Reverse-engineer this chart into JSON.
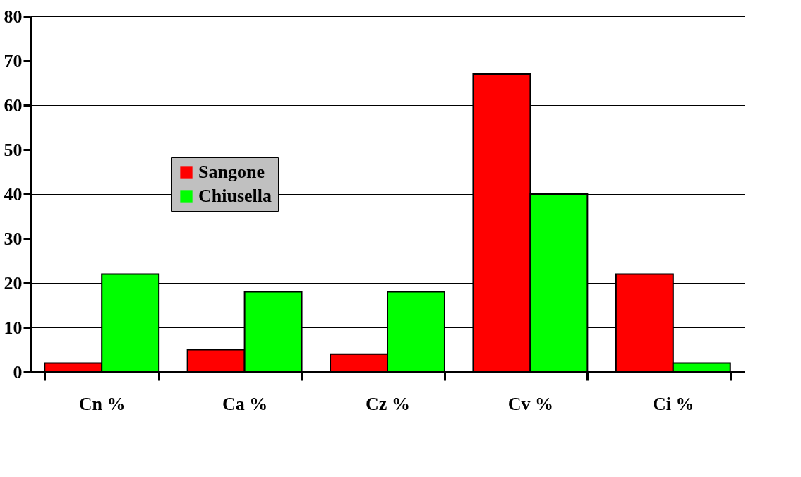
{
  "chart_data": {
    "type": "bar",
    "categories": [
      "Cn %",
      "Ca %",
      "Cz %",
      "Cv %",
      "Ci %"
    ],
    "series": [
      {
        "name": "Sangone",
        "color": "#ff0000",
        "values": [
          2,
          5,
          4,
          67,
          22
        ]
      },
      {
        "name": "Chiusella",
        "color": "#00ff00",
        "values": [
          22,
          18,
          18,
          40,
          2
        ]
      }
    ],
    "ylim": [
      0,
      80
    ],
    "yticks": [
      0,
      10,
      20,
      30,
      40,
      50,
      60,
      70,
      80
    ],
    "grid": "y",
    "legend": "top left"
  }
}
